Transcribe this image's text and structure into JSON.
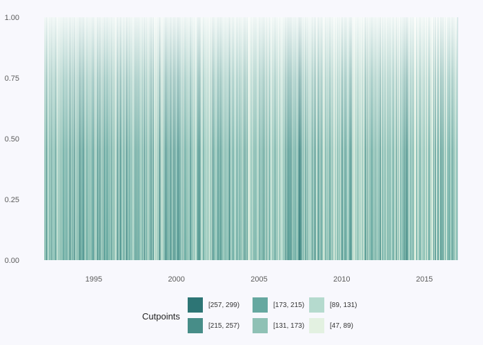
{
  "chart_data": {
    "type": "heatmap",
    "title": "",
    "xlabel": "",
    "ylabel": "",
    "xlim": [
      1992,
      2017
    ],
    "ylim": [
      0,
      1
    ],
    "x_ticks": [
      1995,
      2000,
      2005,
      2010,
      2015
    ],
    "x_tick_labels": [
      "1995",
      "2000",
      "2005",
      "2010",
      "2015"
    ],
    "y_ticks": [
      0,
      0.25,
      0.5,
      0.75,
      1
    ],
    "y_tick_labels": [
      "0.00",
      "0.25",
      "0.50",
      "0.75",
      "1.00"
    ],
    "grid": false,
    "description_fill": "vertical stripes spanning the full y range; each stripe colored by a binned count value; color fades toward white near the top",
    "color_scale": {
      "title": "Cutpoints",
      "bins": [
        {
          "label": "[257, 299)",
          "color": "#2d7575"
        },
        {
          "label": "[215, 257)",
          "color": "#478d88"
        },
        {
          "label": "[173, 215)",
          "color": "#66a8a0"
        },
        {
          "label": "[131, 173)",
          "color": "#8fc1b5"
        },
        {
          "label": "[89, 131)",
          "color": "#b5dace"
        },
        {
          "label": "[47, 89)",
          "color": "#e3f1e1"
        }
      ]
    },
    "legend_position": "bottom"
  }
}
